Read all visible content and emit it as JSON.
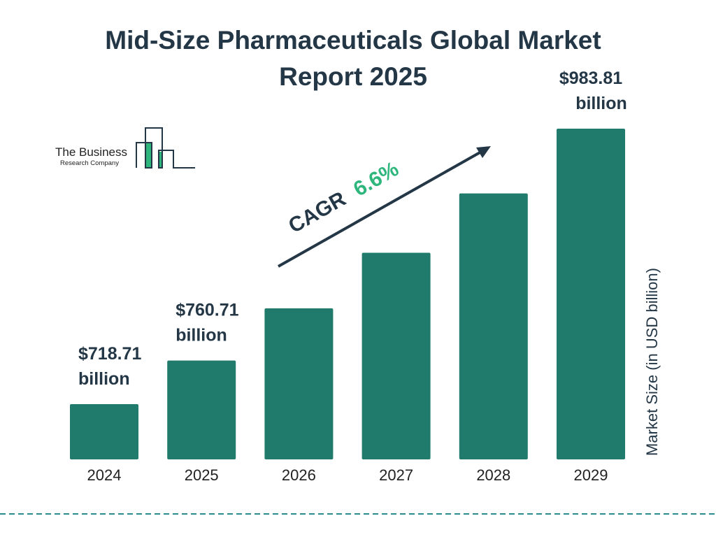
{
  "title": "Mid-Size Pharmaceuticals Global Market Report 2025",
  "logo": {
    "line1": "The Business",
    "line2": "Research Company"
  },
  "colors": {
    "bar": "#217B6C",
    "text": "#243746",
    "accent": "#2EB67D",
    "divider": "#2A8C8C"
  },
  "chart_data": {
    "type": "bar",
    "title": "Mid-Size Pharmaceuticals Global Market Report 2025",
    "categories": [
      "2024",
      "2025",
      "2026",
      "2027",
      "2028",
      "2029"
    ],
    "values": [
      718.71,
      760.71,
      810.9,
      864.4,
      921.5,
      983.81
    ],
    "data_labels": [
      {
        "category": "2024",
        "value": "$718.71",
        "unit": "billion"
      },
      {
        "category": "2025",
        "value": "$760.71",
        "unit": "billion"
      },
      {
        "category": "2029",
        "value": "$983.81",
        "unit": "billion"
      }
    ],
    "ylabel": "Market Size (in USD billion)",
    "xlabel": "",
    "grid": false,
    "annotation": {
      "label": "CAGR",
      "value": "6.6%"
    }
  }
}
